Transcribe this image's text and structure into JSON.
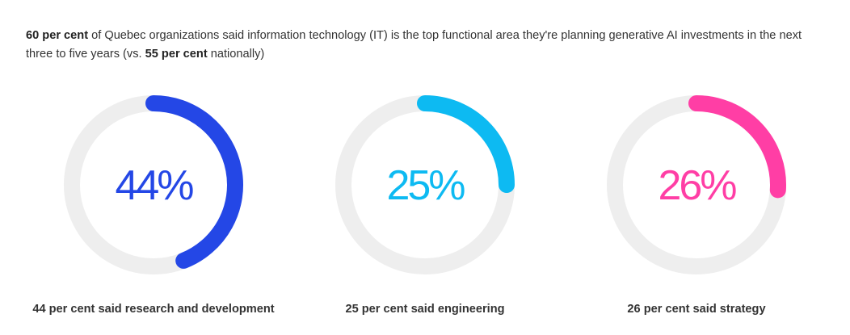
{
  "intro": {
    "part1_bold": "60 per cent",
    "part2": " of Quebec organizations said information technology (IT) is the top functional area they're planning generative AI investments in the next three to five years (vs. ",
    "part3_bold": "55 per cent",
    "part4": " nationally)"
  },
  "chart_data": {
    "type": "gauge",
    "max": 100,
    "track_color": "#eeeeee",
    "series": [
      {
        "value": 44,
        "label": "44%",
        "caption": "44 per cent said research and development",
        "color": "#2447e6"
      },
      {
        "value": 25,
        "label": "25%",
        "caption": "25 per cent said engineering",
        "color": "#0dbaf2"
      },
      {
        "value": 26,
        "label": "26%",
        "caption": "26 per cent said strategy",
        "color": "#ff3ea5"
      }
    ]
  }
}
